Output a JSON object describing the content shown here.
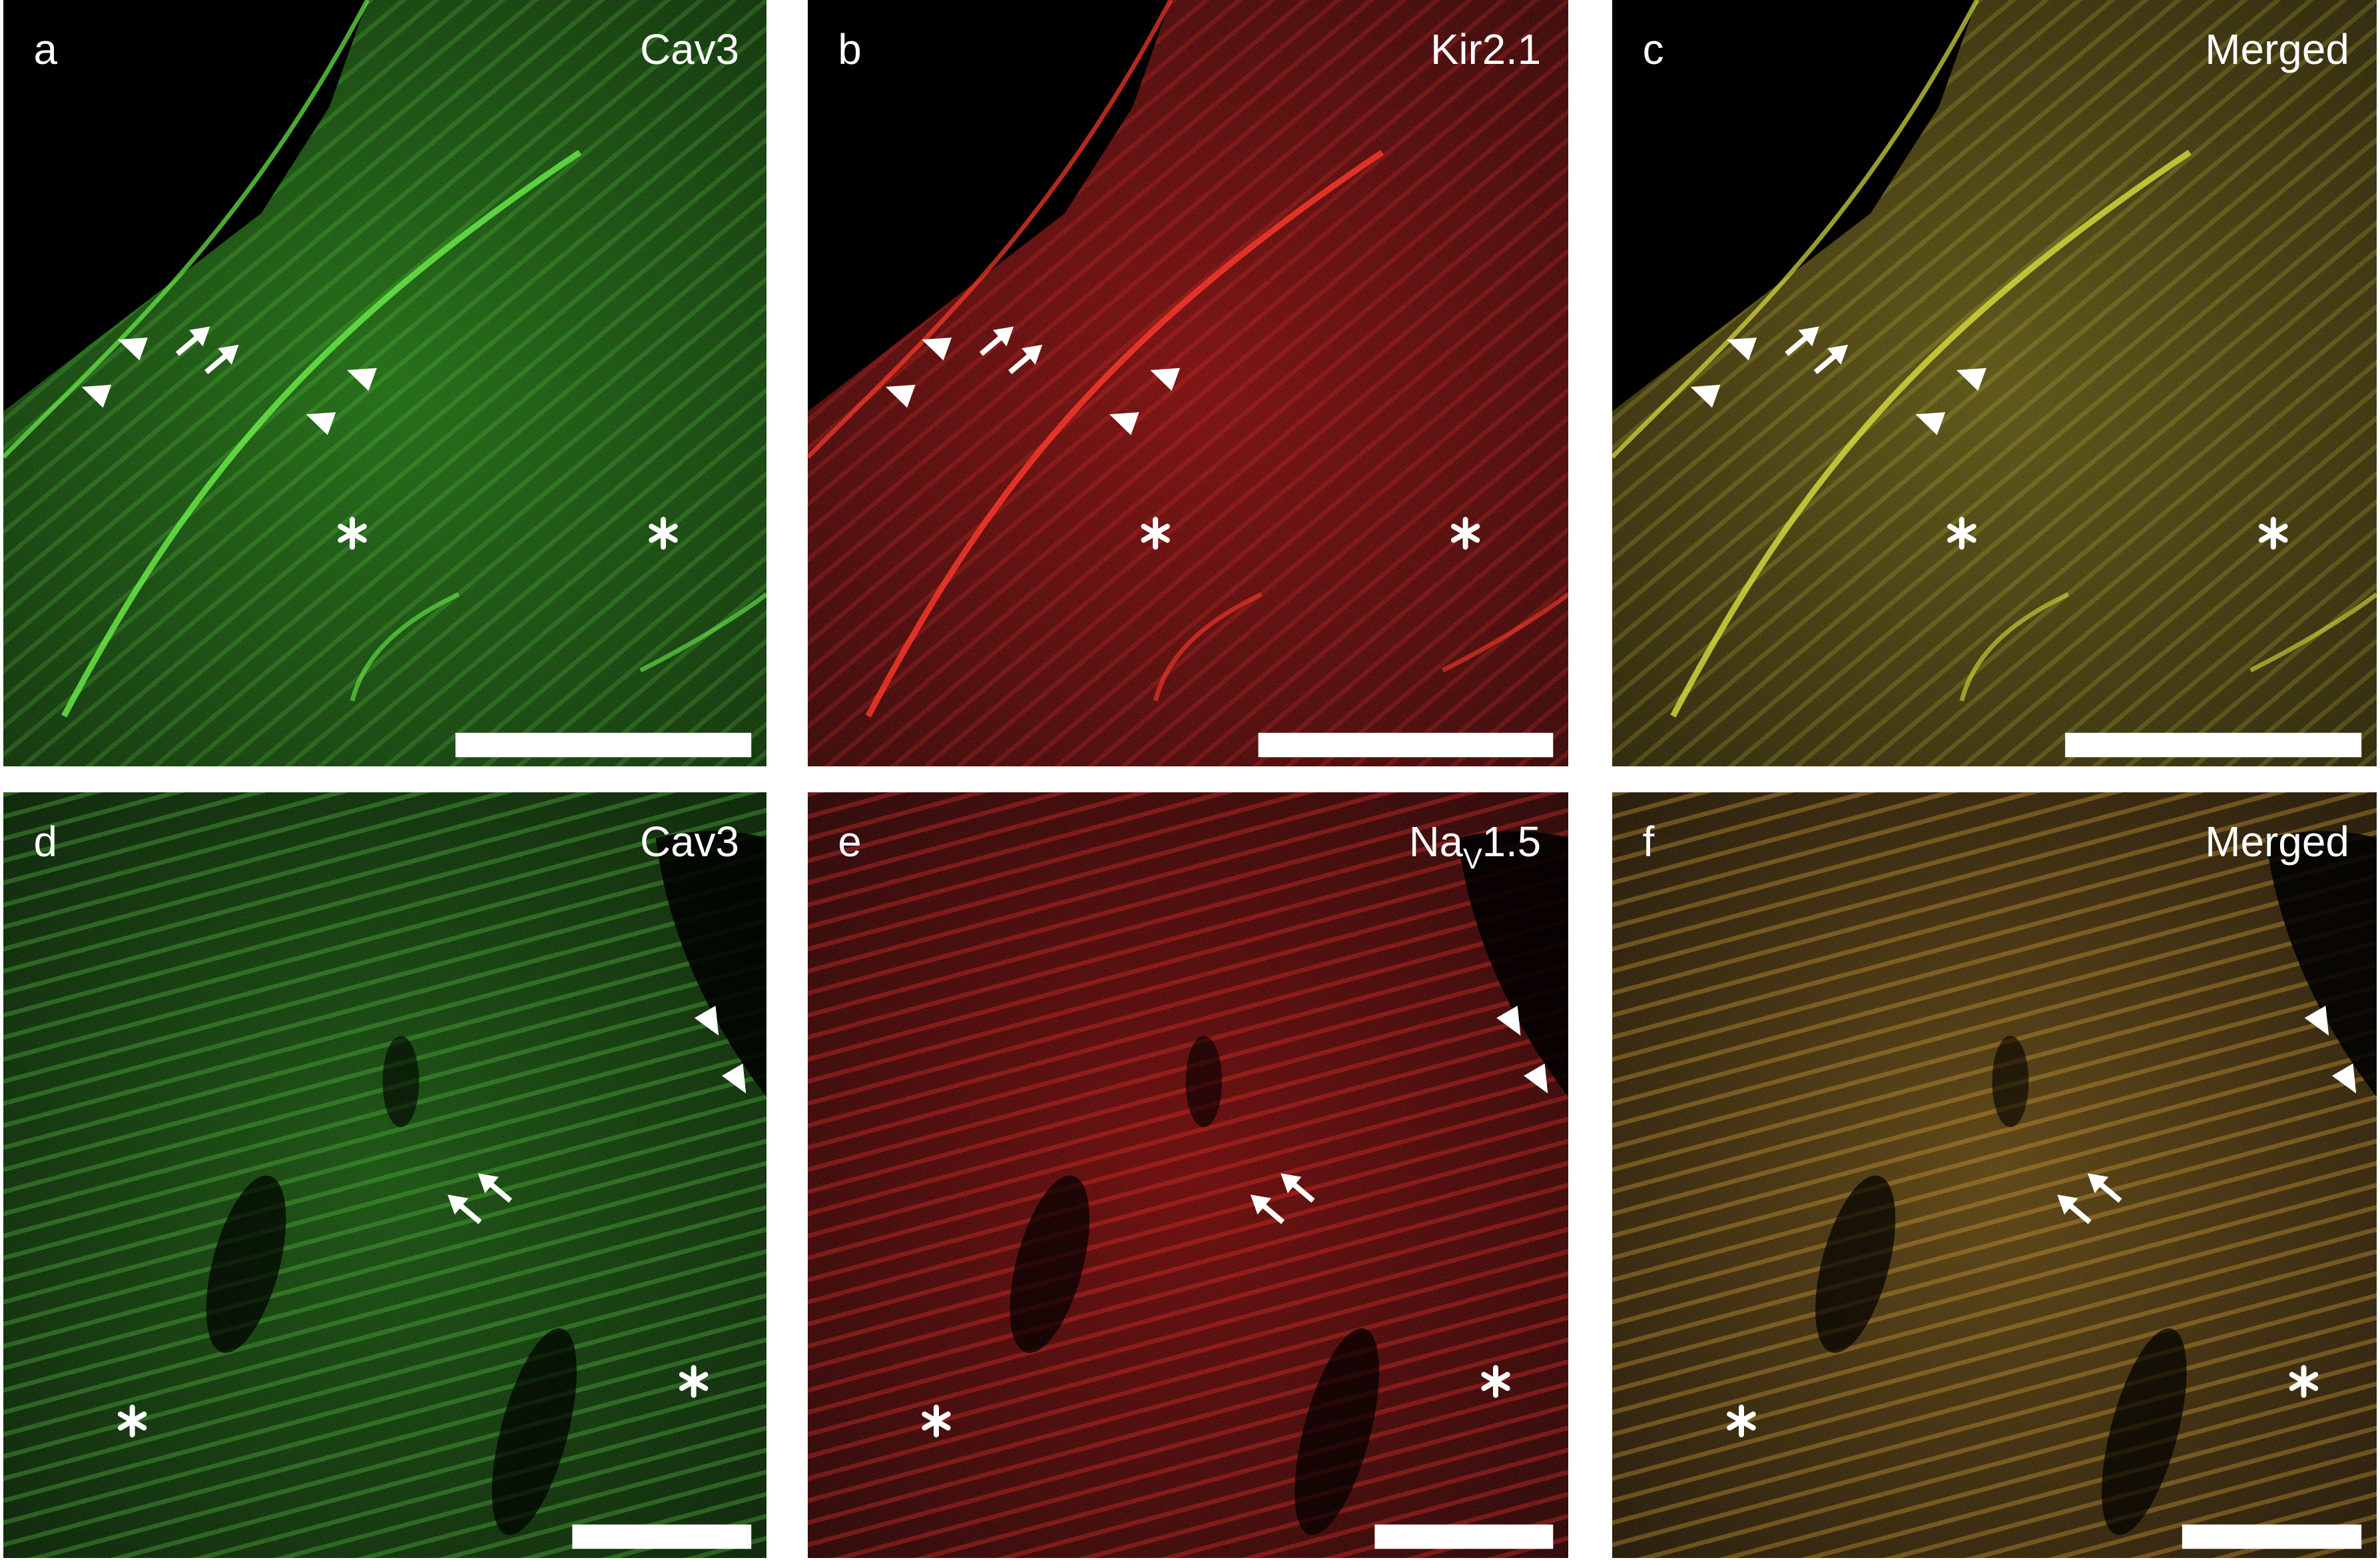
{
  "panels": [
    {
      "letter": "a",
      "label": "Cav3"
    },
    {
      "letter": "b",
      "label": "Kir2.1"
    },
    {
      "letter": "c",
      "label": "Merged"
    },
    {
      "letter": "d",
      "label": "Cav3"
    },
    {
      "letter": "e",
      "label": {
        "main": "Na",
        "sub": "V",
        "rest": "1.5"
      }
    },
    {
      "letter": "f",
      "label": "Merged"
    }
  ]
}
